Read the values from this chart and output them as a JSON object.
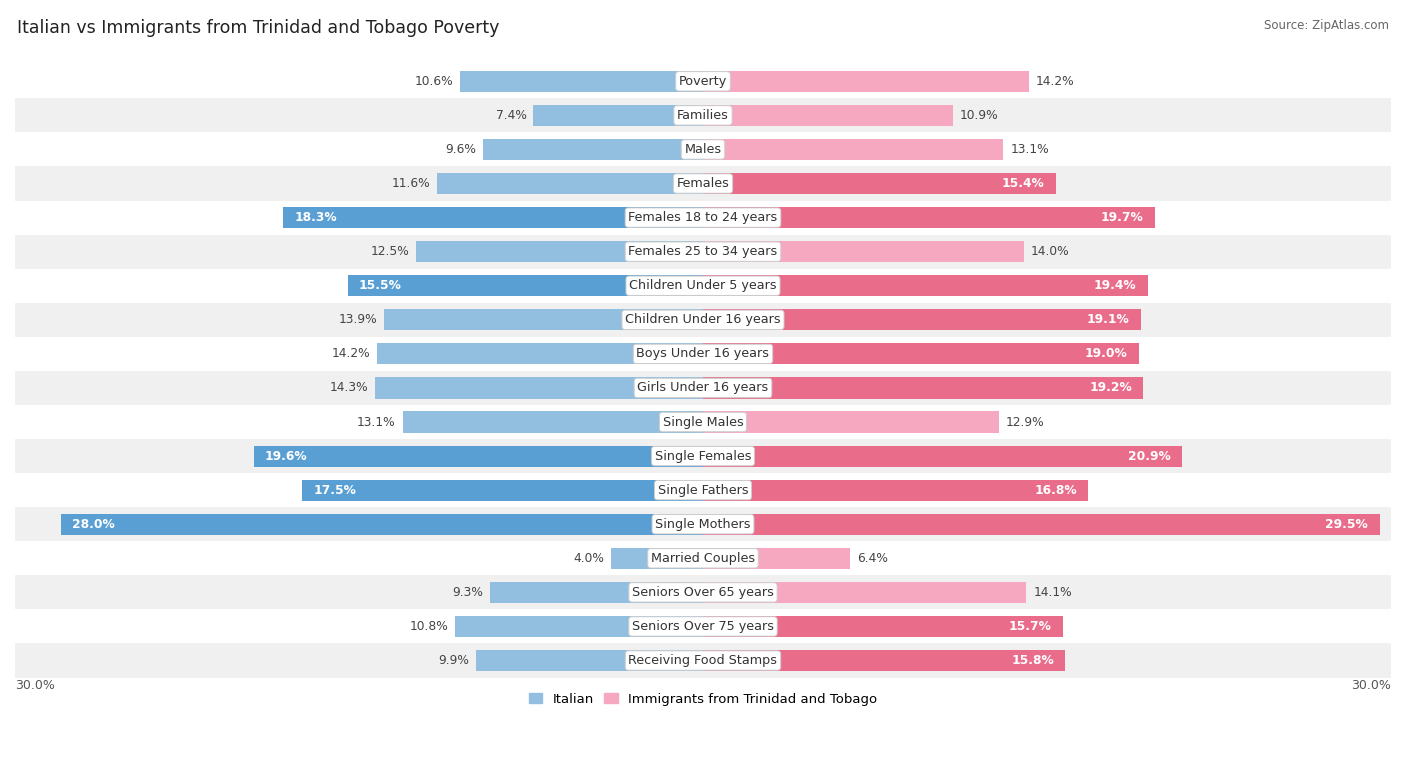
{
  "title": "Italian vs Immigrants from Trinidad and Tobago Poverty",
  "source": "Source: ZipAtlas.com",
  "categories": [
    "Poverty",
    "Families",
    "Males",
    "Females",
    "Females 18 to 24 years",
    "Females 25 to 34 years",
    "Children Under 5 years",
    "Children Under 16 years",
    "Boys Under 16 years",
    "Girls Under 16 years",
    "Single Males",
    "Single Females",
    "Single Fathers",
    "Single Mothers",
    "Married Couples",
    "Seniors Over 65 years",
    "Seniors Over 75 years",
    "Receiving Food Stamps"
  ],
  "italian_values": [
    10.6,
    7.4,
    9.6,
    11.6,
    18.3,
    12.5,
    15.5,
    13.9,
    14.2,
    14.3,
    13.1,
    19.6,
    17.5,
    28.0,
    4.0,
    9.3,
    10.8,
    9.9
  ],
  "immigrant_values": [
    14.2,
    10.9,
    13.1,
    15.4,
    19.7,
    14.0,
    19.4,
    19.1,
    19.0,
    19.2,
    12.9,
    20.9,
    16.8,
    29.5,
    6.4,
    14.1,
    15.7,
    15.8
  ],
  "italian_color": "#92bfdf",
  "immigrant_color": "#f5a8bf",
  "italian_color_highlight": "#5a9fd4",
  "immigrant_color_highlight": "#e96c8a",
  "axis_max": 30.0,
  "bar_height": 0.62,
  "background_color": "#ffffff",
  "row_bg_light": "#f0f0f0",
  "row_bg_white": "#ffffff",
  "label_fontsize": 9.2,
  "value_fontsize": 8.8,
  "title_fontsize": 12.5
}
